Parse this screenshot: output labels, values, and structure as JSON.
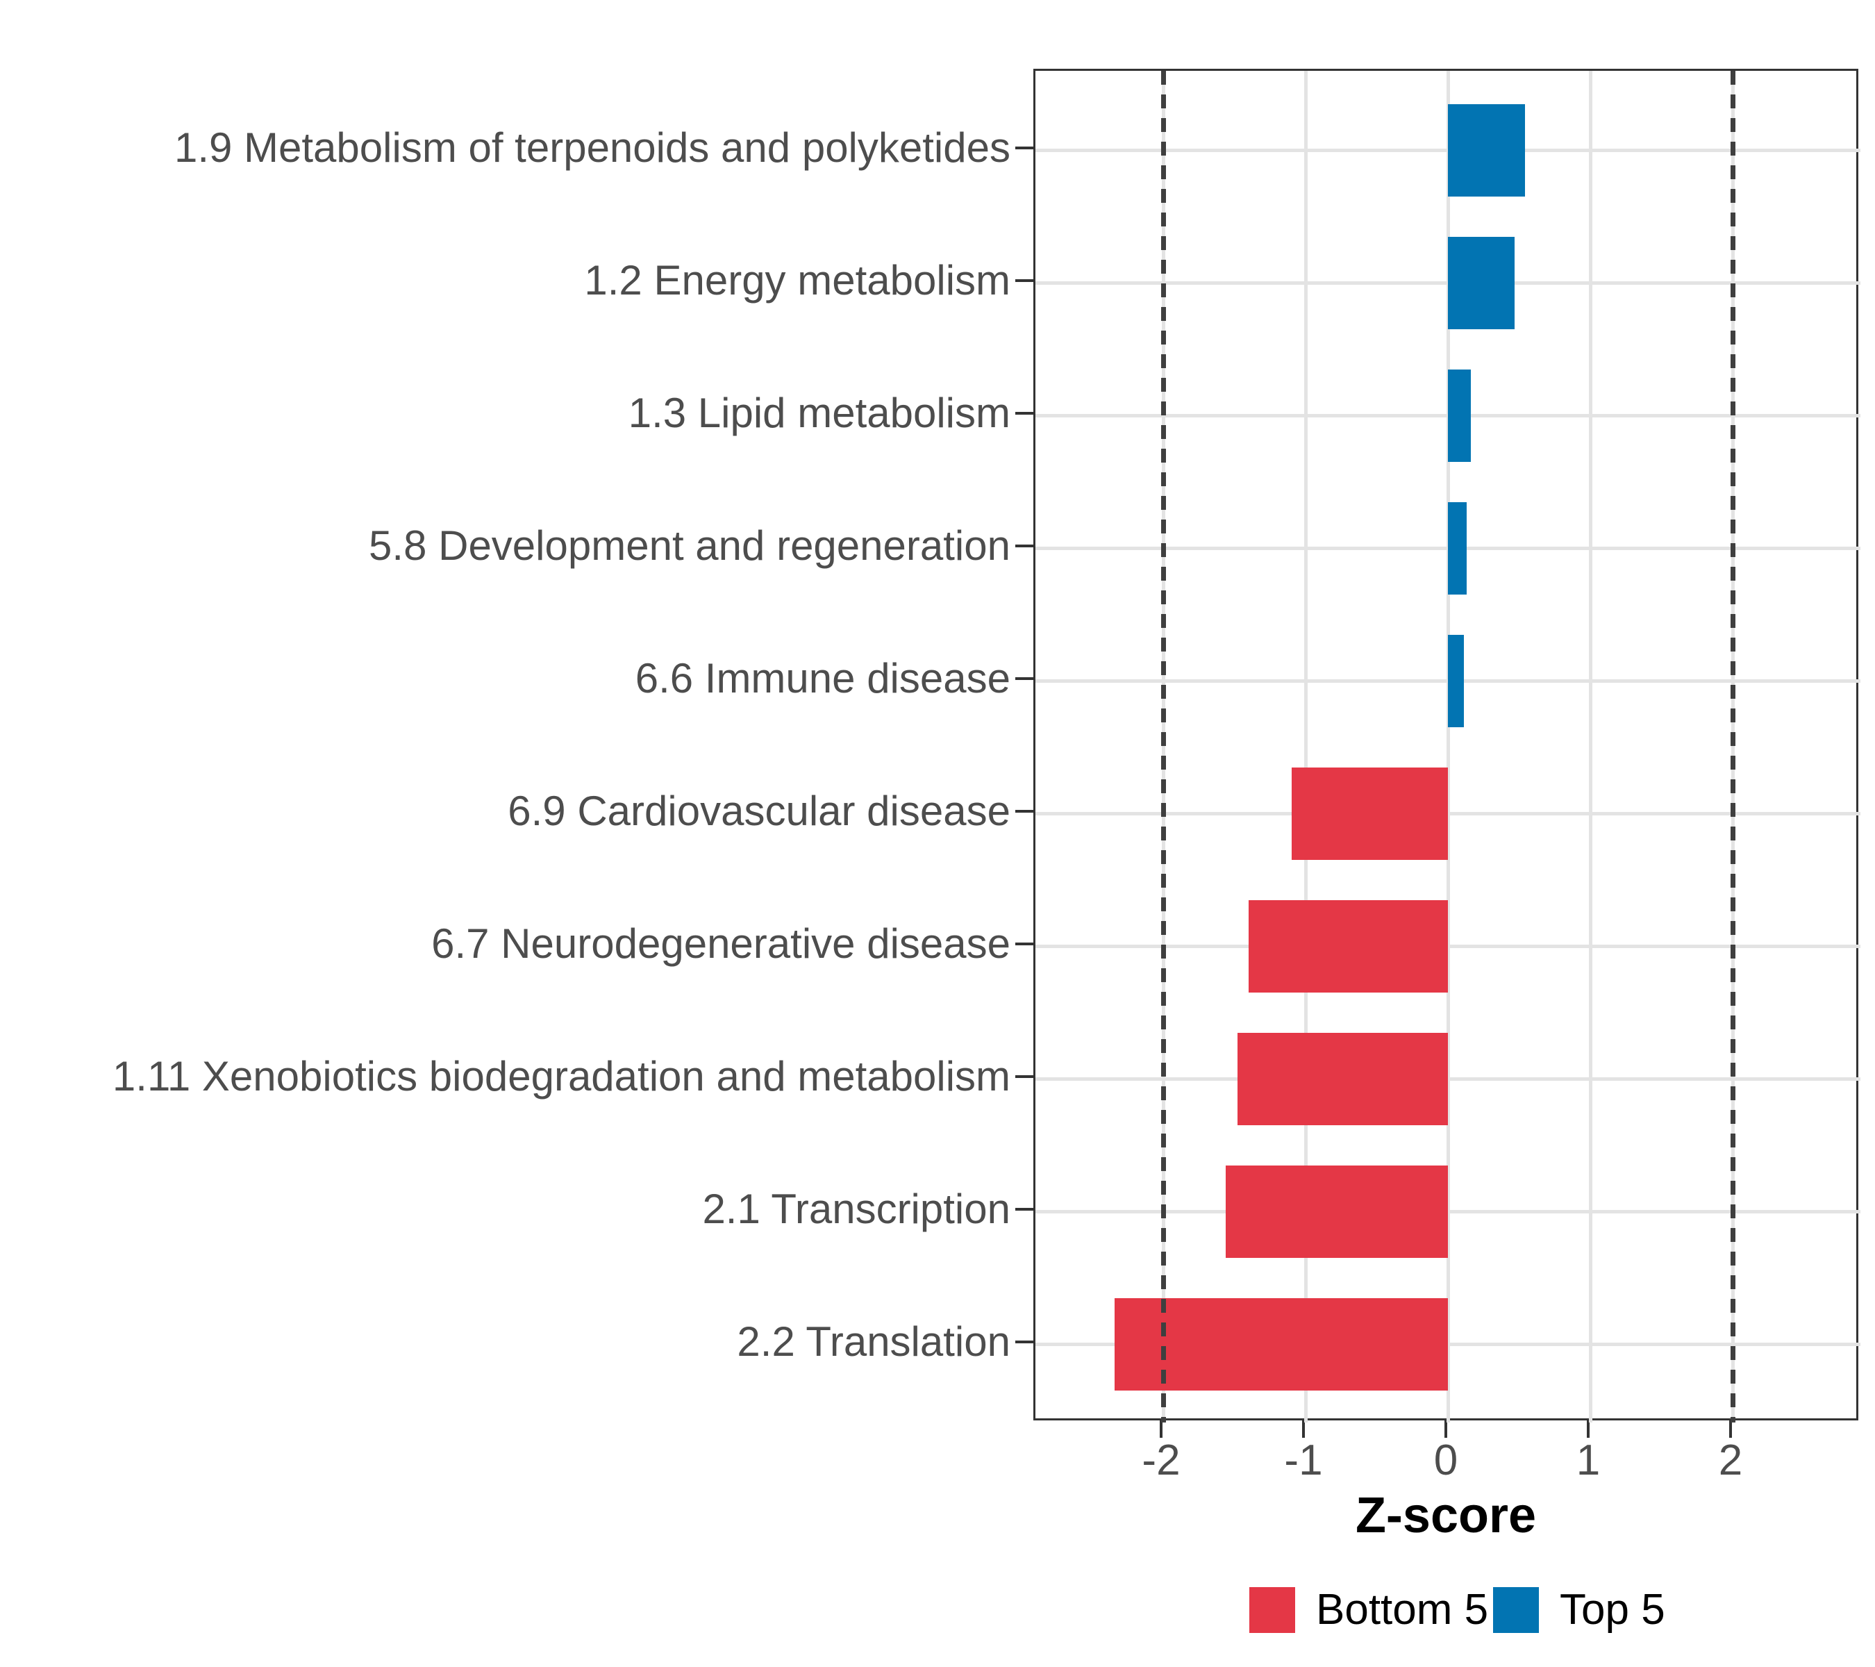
{
  "chart_data": {
    "type": "bar",
    "orientation": "horizontal",
    "title": "",
    "xlabel": "Z-score",
    "ylabel": "",
    "categories": [
      "1.9 Metabolism of terpenoids and polyketides",
      "1.2 Energy metabolism",
      "1.3 Lipid metabolism",
      "5.8 Development and regeneration",
      "6.6 Immune disease",
      "6.9 Cardiovascular disease",
      "6.7 Neurodegenerative disease",
      "1.11 Xenobiotics biodegradation and metabolism",
      "2.1 Transcription",
      "2.2 Translation"
    ],
    "values": [
      0.54,
      0.47,
      0.16,
      0.13,
      0.11,
      -1.1,
      -1.4,
      -1.48,
      -1.56,
      -2.34
    ],
    "series": [
      {
        "name": "Top 5",
        "color": "#0274B2",
        "rule": "value >= 0"
      },
      {
        "name": "Bottom 5",
        "color": "#E43746",
        "rule": "value < 0"
      }
    ],
    "xticks": [
      -2,
      -1,
      0,
      1,
      2
    ],
    "xtick_labels": [
      "-2",
      "-1",
      "0",
      "1",
      "2"
    ],
    "xlim": [
      -2.9,
      2.9
    ],
    "reference_lines": [
      -2,
      2
    ],
    "grid": true,
    "legend": {
      "position": "bottom",
      "items": [
        {
          "label": "Bottom 5",
          "color": "#E43746"
        },
        {
          "label": "Top 5",
          "color": "#0274B2"
        }
      ]
    },
    "colors": {
      "grid": "#E3E3E3",
      "panel_border": "#333333",
      "reference_line": "#3F3F3F",
      "axis_text": "#4D4D4D",
      "title_text": "#000000"
    }
  }
}
